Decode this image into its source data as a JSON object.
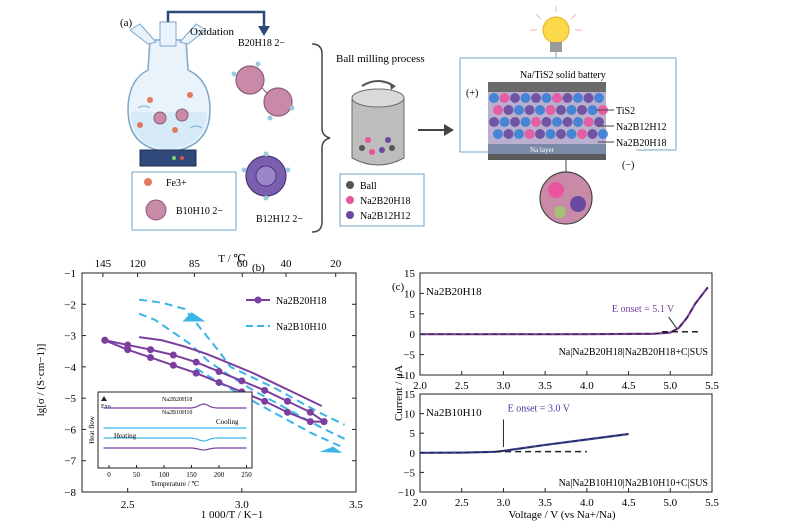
{
  "panel_a": {
    "label": "(a)",
    "oxidation_label": "Oxidation",
    "b20_label": "B20H18 2−",
    "fe_label": "Fe3+",
    "b10_label": "B10H10 2−",
    "b12_label": "B12H12 2−",
    "process_label": "Ball milling process",
    "battery_label": "Na/TiS2 solid battery",
    "plus_label": "(+)",
    "minus_label": "(−)",
    "na_layer_label": "Na layer",
    "legend_right": [
      "TiS2",
      "Na2B12H12",
      "Na2B20H18"
    ],
    "legend_box": [
      "Ball",
      "Na2B20H18",
      "Na2B12H12"
    ],
    "colors": {
      "ball": "#555555",
      "na2b20h18": "#e8559c",
      "na2b12h12": "#6a4aa0",
      "tis2": "#3a7fd5",
      "cluster_pink": "#c98aa8",
      "cluster_purple": "#7a5fae"
    }
  },
  "chart_data": [
    {
      "panel": "(b)",
      "type": "line",
      "xlabel": "1 000/T / K−1",
      "ylabel": "lg[σ / (S·cm−1)]",
      "top_xlabel": "T / ℃",
      "xlim": [
        2.3,
        3.5
      ],
      "ylim": [
        -8,
        -1
      ],
      "xticks": [
        2.5,
        3.0,
        3.5
      ],
      "yticks": [
        -1,
        -2,
        -3,
        -4,
        -5,
        -6,
        -7,
        -8
      ],
      "top_ticks": [
        145,
        120,
        85,
        60,
        40,
        20
      ],
      "series": [
        {
          "name": "Na2B20H18",
          "color": "#7b3fa0",
          "style": "solid-marker",
          "heating": [
            [
              2.4,
              -3.15
            ],
            [
              2.5,
              -3.3
            ],
            [
              2.6,
              -3.45
            ],
            [
              2.7,
              -3.62
            ],
            [
              2.8,
              -3.85
            ],
            [
              2.9,
              -4.15
            ],
            [
              3.0,
              -4.45
            ],
            [
              3.1,
              -4.75
            ],
            [
              3.2,
              -5.1
            ],
            [
              3.3,
              -5.45
            ],
            [
              3.36,
              -5.75
            ]
          ],
          "cooling": [
            [
              2.4,
              -3.15
            ],
            [
              2.5,
              -3.45
            ],
            [
              2.6,
              -3.7
            ],
            [
              2.7,
              -3.95
            ],
            [
              2.8,
              -4.2
            ],
            [
              2.9,
              -4.5
            ],
            [
              3.0,
              -4.8
            ],
            [
              3.1,
              -5.1
            ],
            [
              3.2,
              -5.45
            ],
            [
              3.3,
              -5.75
            ],
            [
              3.36,
              -5.75
            ]
          ],
          "upper": [
            [
              2.55,
              -3.05
            ],
            [
              2.65,
              -3.15
            ],
            [
              2.75,
              -3.35
            ],
            [
              2.85,
              -3.6
            ],
            [
              2.95,
              -3.9
            ],
            [
              3.05,
              -4.2
            ],
            [
              3.15,
              -4.55
            ],
            [
              3.25,
              -4.9
            ],
            [
              3.35,
              -5.25
            ]
          ]
        },
        {
          "name": "Na2B10H10",
          "color": "#3ab5e6",
          "style": "dashed",
          "curves": [
            [
              [
                2.55,
                -1.85
              ],
              [
                2.65,
                -1.95
              ],
              [
                2.75,
                -2.15
              ],
              [
                2.8,
                -2.6
              ],
              [
                2.9,
                -3.5
              ],
              [
                2.95,
                -4.0
              ],
              [
                3.05,
                -4.35
              ],
              [
                3.15,
                -4.7
              ],
              [
                3.25,
                -5.1
              ],
              [
                3.35,
                -5.5
              ],
              [
                3.45,
                -5.85
              ]
            ],
            [
              [
                2.55,
                -2.3
              ],
              [
                2.62,
                -2.5
              ],
              [
                2.7,
                -2.9
              ],
              [
                2.78,
                -3.3
              ],
              [
                2.85,
                -3.8
              ],
              [
                2.95,
                -4.3
              ],
              [
                3.05,
                -4.75
              ],
              [
                3.15,
                -5.15
              ],
              [
                3.25,
                -5.55
              ],
              [
                3.35,
                -5.95
              ],
              [
                3.45,
                -6.3
              ]
            ],
            [
              [
                2.8,
                -4.05
              ],
              [
                2.9,
                -4.5
              ],
              [
                3.0,
                -4.9
              ],
              [
                3.1,
                -5.3
              ],
              [
                3.2,
                -5.7
              ],
              [
                3.3,
                -6.1
              ],
              [
                3.45,
                -6.6
              ]
            ]
          ]
        }
      ],
      "inset": {
        "xlabel": "Temperature / ℃",
        "ylabel": "Heat flow",
        "xticks": [
          0,
          50,
          100,
          150,
          200,
          250
        ],
        "xlim": [
          -20,
          260
        ],
        "exo_label": "Exo",
        "heating_label": "Heating",
        "cooling_label": "Cooling",
        "series": [
          {
            "name": "Na2B20H18",
            "color": "#7b3fa0"
          },
          {
            "name": "Na2B10H10",
            "color": "#3ab5e6"
          }
        ]
      }
    },
    {
      "panel": "(c) top",
      "type": "line",
      "xlabel": "",
      "ylabel": "",
      "xlim": [
        2.0,
        5.5
      ],
      "ylim": [
        -10,
        15
      ],
      "xticks": [
        2.0,
        2.5,
        3.0,
        3.5,
        4.0,
        4.5,
        5.0,
        5.5
      ],
      "yticks": [
        15,
        10,
        5,
        0,
        -5,
        -10
      ],
      "compound_label": "Na2B20H18",
      "onset_label": "E onset = 5.1 V",
      "cell_label": "Na|Na2B20H18|Na2B20H18+C|SUS",
      "series": [
        {
          "name": "Na2B20H18",
          "color": "#7b3fa0",
          "x": [
            2.0,
            3.0,
            4.0,
            4.8,
            5.0,
            5.1,
            5.2,
            5.3,
            5.45
          ],
          "y": [
            0,
            0,
            0,
            0.1,
            0.4,
            1.5,
            4,
            7.5,
            11.5
          ]
        }
      ]
    },
    {
      "panel": "(c) bottom",
      "type": "line",
      "xlabel": "Voltage / V (vs Na+/Na)",
      "ylabel": "Current / μA",
      "xlim": [
        2.0,
        5.5
      ],
      "ylim": [
        -10,
        15
      ],
      "xticks": [
        2.0,
        2.5,
        3.0,
        3.5,
        4.0,
        4.5,
        5.0,
        5.5
      ],
      "yticks": [
        15,
        10,
        5,
        0,
        -5,
        -10
      ],
      "compound_label": "Na2B10H10",
      "onset_label": "E onset = 3.0 V",
      "cell_label": "Na|Na2B10H10|Na2B10H10+C|SUS",
      "series": [
        {
          "name": "Na2B10H10",
          "color": "#3b3f9e",
          "x": [
            2.0,
            2.5,
            2.9,
            3.0,
            3.2,
            3.5,
            4.0,
            4.5
          ],
          "y": [
            0,
            0.05,
            0.25,
            0.5,
            1.1,
            2.0,
            3.4,
            4.8
          ]
        }
      ]
    }
  ]
}
